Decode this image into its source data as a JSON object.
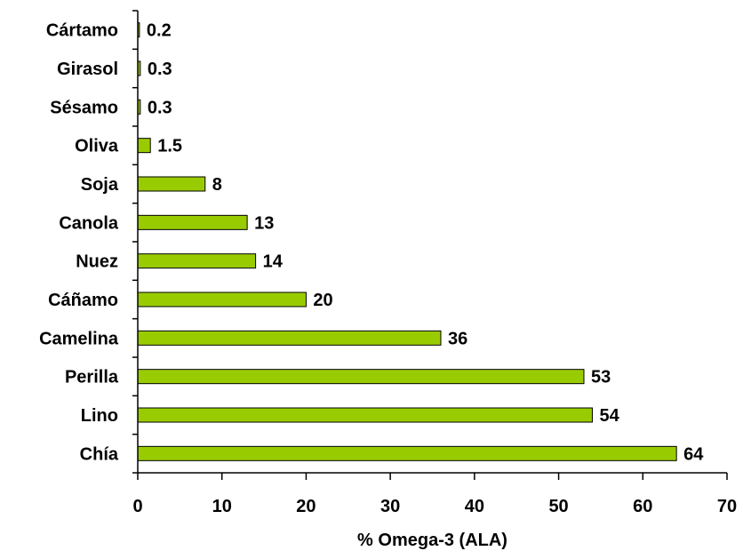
{
  "chart_data": {
    "type": "bar",
    "orientation": "horizontal",
    "categories": [
      "Cártamo",
      "Girasol",
      "Sésamo",
      "Oliva",
      "Soja",
      "Canola",
      "Nuez",
      "Cáñamo",
      "Camelina",
      "Perilla",
      "Lino",
      "Chía"
    ],
    "values": [
      0.2,
      0.3,
      0.3,
      1.5,
      8,
      13,
      14,
      20,
      36,
      53,
      54,
      64
    ],
    "value_labels": [
      "0.2",
      "0.3",
      "0.3",
      "1.5",
      "8",
      "13",
      "14",
      "20",
      "36",
      "53",
      "54",
      "64"
    ],
    "xlabel": "% Omega-3 (ALA)",
    "ylabel": "",
    "xlim": [
      0,
      70
    ],
    "xticks": [
      0,
      10,
      20,
      30,
      40,
      50,
      60,
      70
    ],
    "grid": false,
    "legend": "none",
    "bar_color": "#99cc00",
    "bar_edge_color": "#000000"
  }
}
